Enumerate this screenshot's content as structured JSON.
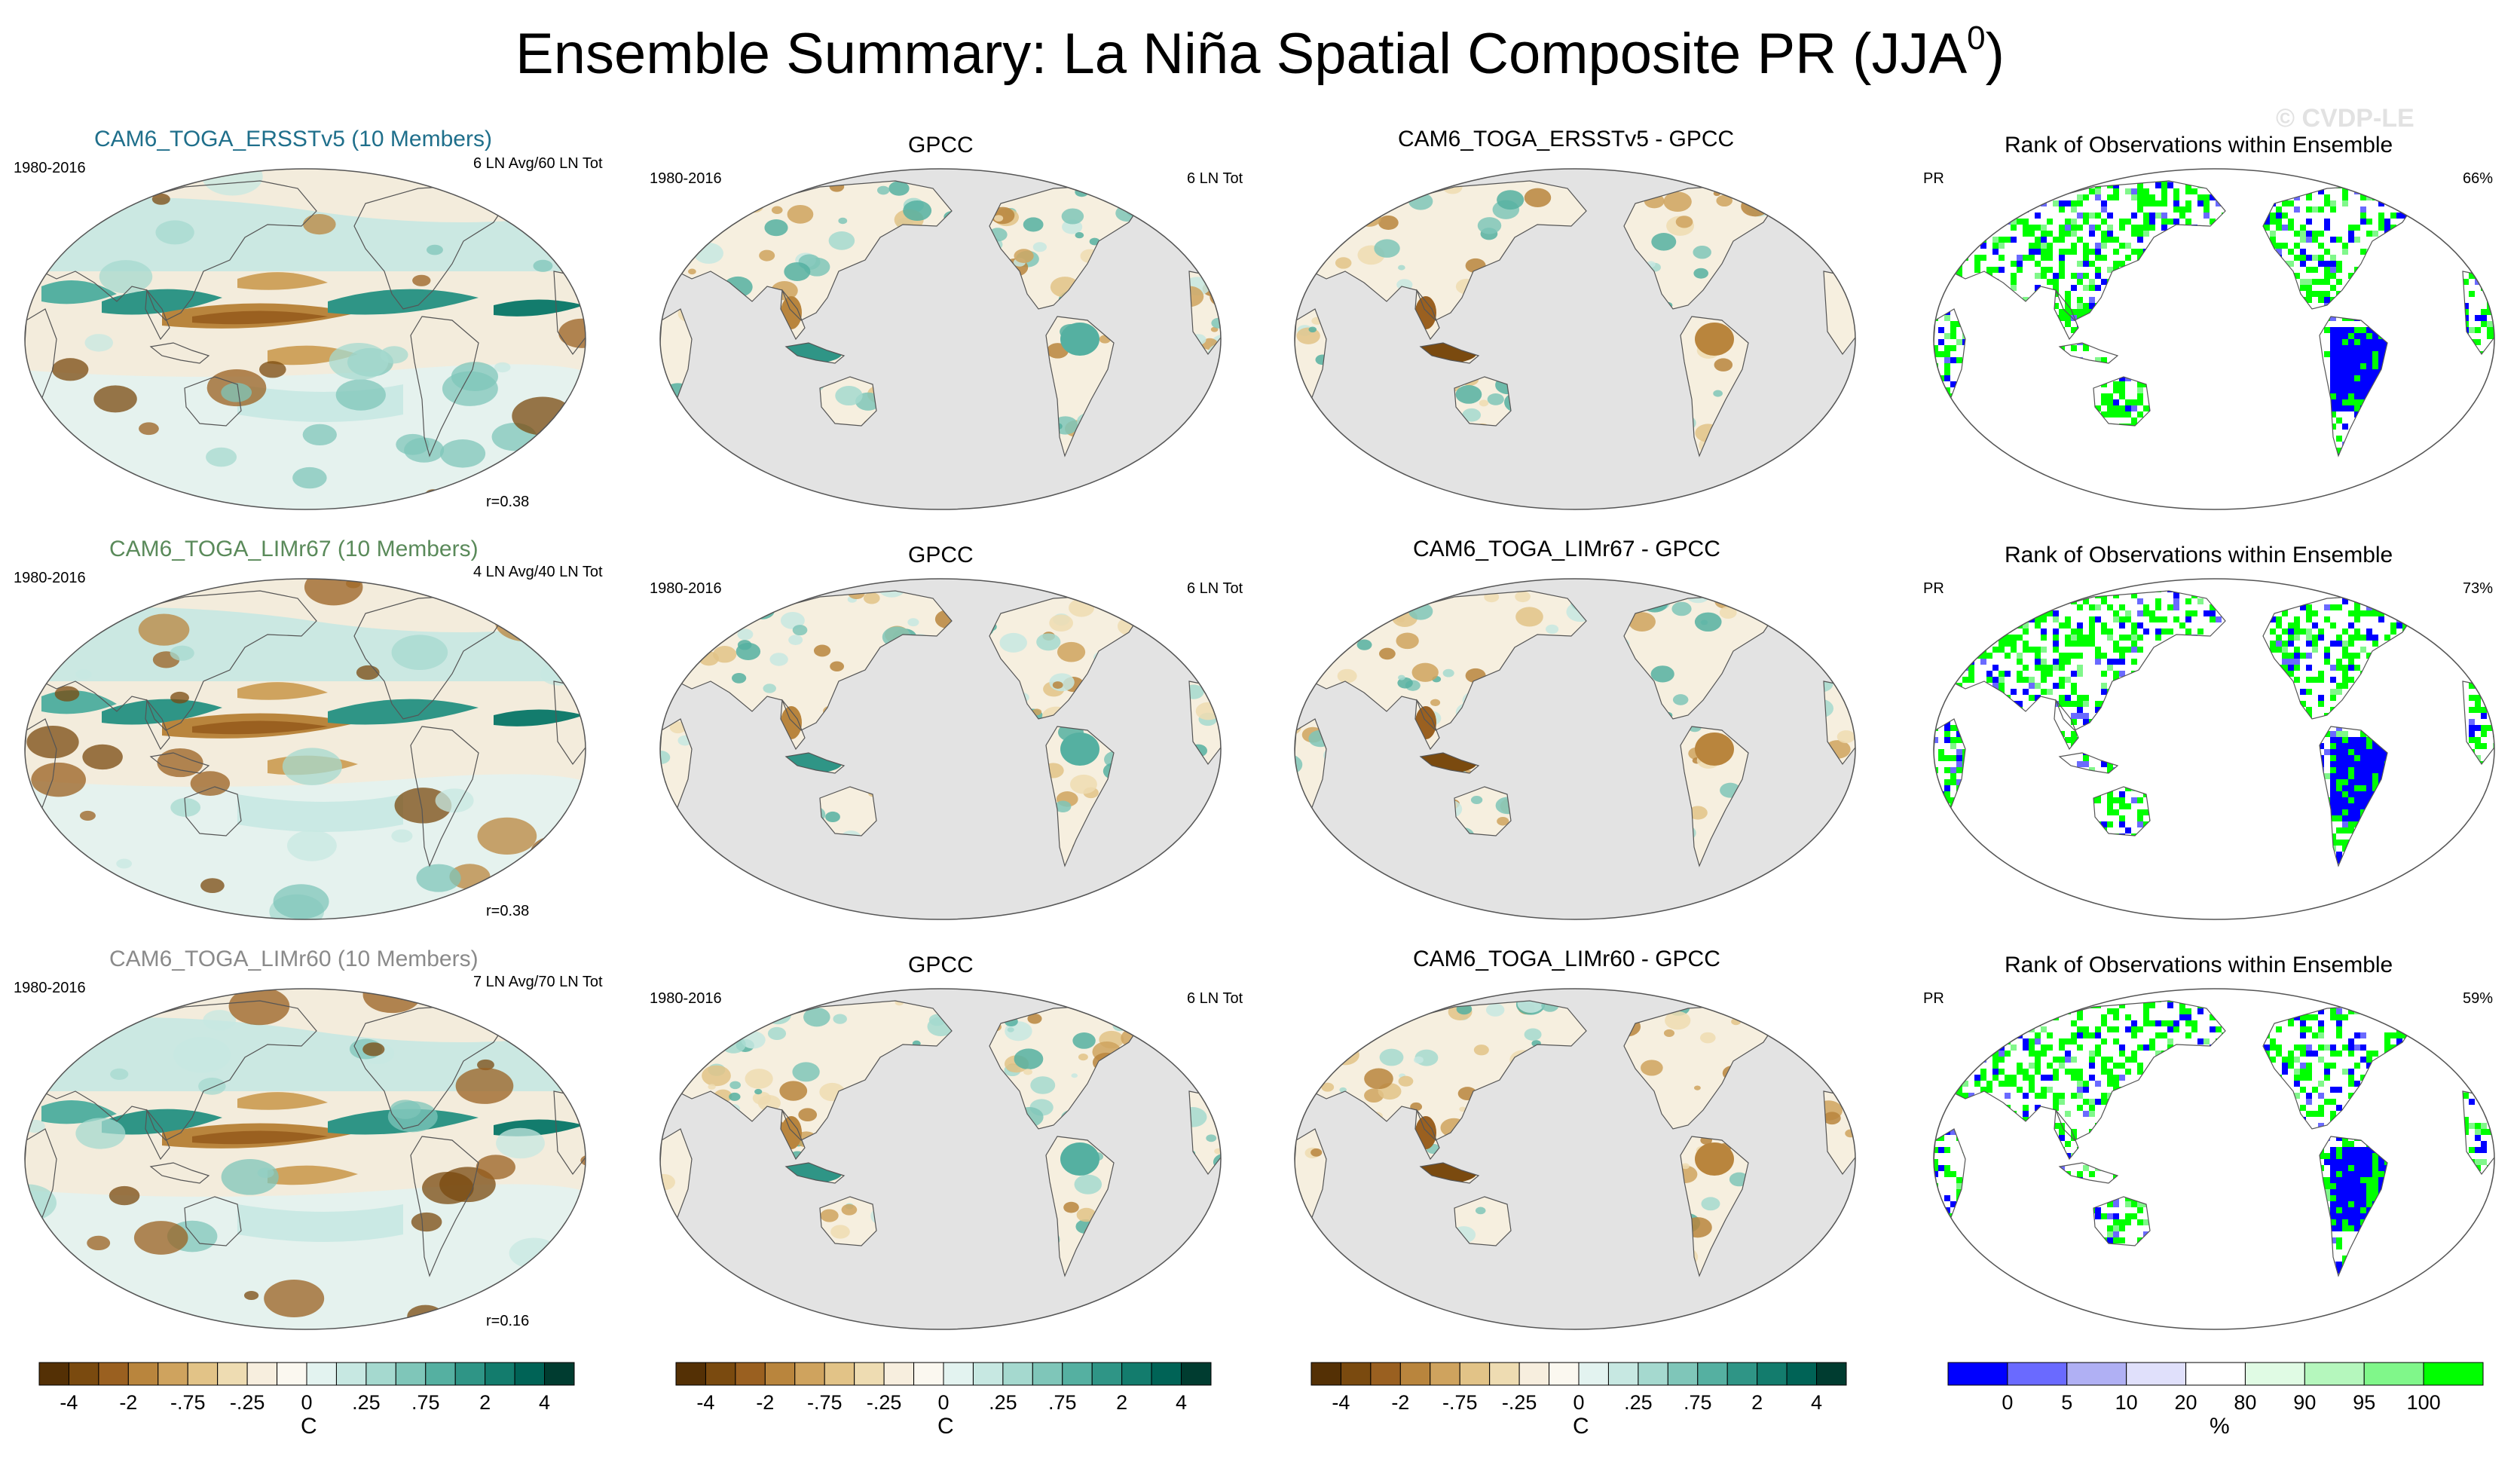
{
  "main_title": "Ensemble Summary: La Niña Spatial Composite PR (JJA",
  "main_title_sup": "0",
  "main_title_end": ")",
  "watermark": "© CVDP-LE",
  "colors": {
    "brown": [
      "#543005",
      "#7a4a0f",
      "#9a6020",
      "#b9853d",
      "#cfa35e",
      "#e2c387",
      "#eedcb2",
      "#f7eede"
    ],
    "teal": [
      "#e3f3f0",
      "#c7e8e2",
      "#a5d9cf",
      "#7fc6b9",
      "#55b0a1",
      "#2f9586",
      "#137c6d",
      "#006356",
      "#003c30"
    ],
    "rank": [
      "#0000ff",
      "#6a6aff",
      "#b0b0f4",
      "#e0e0fb",
      "#ffffff",
      "#e0fbe4",
      "#b5f7bd",
      "#80f78a",
      "#00ff00"
    ],
    "ocean_gray": "#e3e3e3",
    "title_teal": "#1f6f8b",
    "title_green": "#5a8a5a",
    "title_gray": "#8a8a8a"
  },
  "rows": [
    {
      "model": {
        "title": "CAM6_TOGA_ERSSTv5 (10 Members)",
        "period": "1980-2016",
        "count": "6 LN Avg/60 LN Tot",
        "corr": "r=0.38"
      },
      "obs": {
        "title": "GPCC",
        "period": "1980-2016",
        "count": "6 LN Tot"
      },
      "diff": {
        "title": "CAM6_TOGA_ERSSTv5 - GPCC"
      },
      "rank": {
        "title": "Rank of Observations within Ensemble",
        "var": "PR",
        "pct": "66%"
      }
    },
    {
      "model": {
        "title": "CAM6_TOGA_LIMr67 (10 Members)",
        "period": "1980-2016",
        "count": "4 LN Avg/40 LN Tot",
        "corr": "r=0.38"
      },
      "obs": {
        "title": "GPCC",
        "period": "1980-2016",
        "count": "6 LN Tot"
      },
      "diff": {
        "title": "CAM6_TOGA_LIMr67 - GPCC"
      },
      "rank": {
        "title": "Rank of Observations within Ensemble",
        "var": "PR",
        "pct": "73%"
      }
    },
    {
      "model": {
        "title": "CAM6_TOGA_LIMr60 (10 Members)",
        "period": "1980-2016",
        "count": "7 LN Avg/70 LN Tot",
        "corr": "r=0.16"
      },
      "obs": {
        "title": "GPCC",
        "period": "1980-2016",
        "count": "6 LN Tot"
      },
      "diff": {
        "title": "CAM6_TOGA_LIMr60 - GPCC"
      },
      "rank": {
        "title": "Rank of Observations within Ensemble",
        "var": "PR",
        "pct": "59%"
      }
    }
  ],
  "chart_data": [
    {
      "type": "heatmap",
      "title": "Ensemble Summary: La Niña Spatial Composite PR (JJA0)",
      "projection": "Robinson-like global, Pacific-centered",
      "panels_per_row": [
        "model composite",
        "GPCC",
        "model - GPCC",
        "rank of observations"
      ],
      "colorbar_temp": {
        "unit": "C",
        "levels": [
          -8,
          -4,
          -3,
          -2,
          -1,
          -0.75,
          -0.5,
          -0.25,
          -0.1,
          0,
          0.1,
          0.25,
          0.5,
          0.75,
          1,
          2,
          3,
          4,
          8
        ],
        "tick_labels": [
          "-4",
          "-2",
          "-.75",
          "-.25",
          "0",
          ".25",
          ".75",
          "2",
          "4"
        ],
        "tick_boundary_index": [
          1,
          3,
          5,
          7,
          9,
          11,
          13,
          15,
          17
        ]
      },
      "colorbar_rank": {
        "unit": "%",
        "tick_labels": [
          "0",
          "5",
          "10",
          "20",
          "80",
          "90",
          "95",
          "100"
        ],
        "tick_boundary_index": [
          1,
          2,
          3,
          4,
          5,
          6,
          7,
          8
        ]
      }
    }
  ]
}
